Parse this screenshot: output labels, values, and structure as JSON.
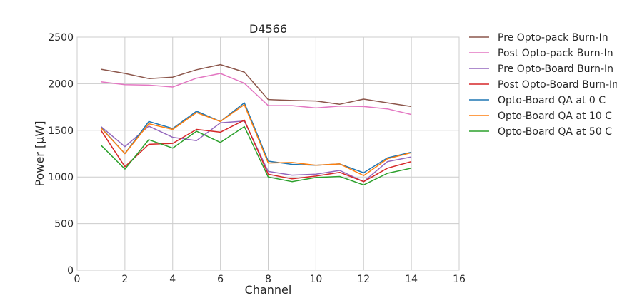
{
  "chart_data": {
    "type": "line",
    "title": "D4566",
    "xlabel": "Channel",
    "ylabel": "Power [μW]",
    "xlim": [
      0,
      16
    ],
    "ylim": [
      0,
      2500
    ],
    "xticks": [
      0,
      2,
      4,
      6,
      8,
      10,
      12,
      14,
      16
    ],
    "yticks": [
      0,
      500,
      1000,
      1500,
      2000,
      2500
    ],
    "grid": true,
    "legend_position": "outside-right",
    "x": [
      1,
      2,
      3,
      4,
      5,
      6,
      7,
      8,
      9,
      10,
      11,
      12,
      13,
      14
    ],
    "series": [
      {
        "name": "Pre Opto-pack Burn-In",
        "color": "#8c564b",
        "values": [
          2155,
          2110,
          2055,
          2070,
          2150,
          2205,
          2125,
          1830,
          1820,
          1815,
          1780,
          1835,
          1795,
          1755
        ]
      },
      {
        "name": "Post Opto-pack Burn-In",
        "color": "#e377c2",
        "values": [
          2020,
          1990,
          1985,
          1965,
          2060,
          2110,
          2005,
          1765,
          1765,
          1740,
          1760,
          1755,
          1730,
          1670
        ]
      },
      {
        "name": "Pre Opto-Board Burn-In",
        "color": "#9467bd",
        "values": [
          1540,
          1325,
          1545,
          1425,
          1390,
          1580,
          1600,
          1060,
          1020,
          1030,
          1070,
          950,
          1165,
          1215
        ]
      },
      {
        "name": "Post Opto-Board Burn-In",
        "color": "#d62728",
        "values": [
          1500,
          1110,
          1350,
          1360,
          1510,
          1480,
          1610,
          1030,
          980,
          1010,
          1050,
          950,
          1095,
          1165
        ]
      },
      {
        "name": "Opto-Board QA at 0 C",
        "color": "#1f77b4",
        "values": [
          1530,
          1250,
          1595,
          1520,
          1705,
          1595,
          1795,
          1170,
          1135,
          1125,
          1140,
          1045,
          1205,
          1265
        ]
      },
      {
        "name": "Opto-Board QA at 10 C",
        "color": "#ff7f0e",
        "values": [
          1525,
          1250,
          1570,
          1510,
          1690,
          1595,
          1775,
          1150,
          1155,
          1125,
          1140,
          1015,
          1195,
          1260
        ]
      },
      {
        "name": "Opto-Board QA at 50 C",
        "color": "#2ca02c",
        "values": [
          1340,
          1085,
          1400,
          1310,
          1490,
          1370,
          1540,
          1000,
          950,
          995,
          1005,
          915,
          1040,
          1095
        ]
      }
    ]
  }
}
